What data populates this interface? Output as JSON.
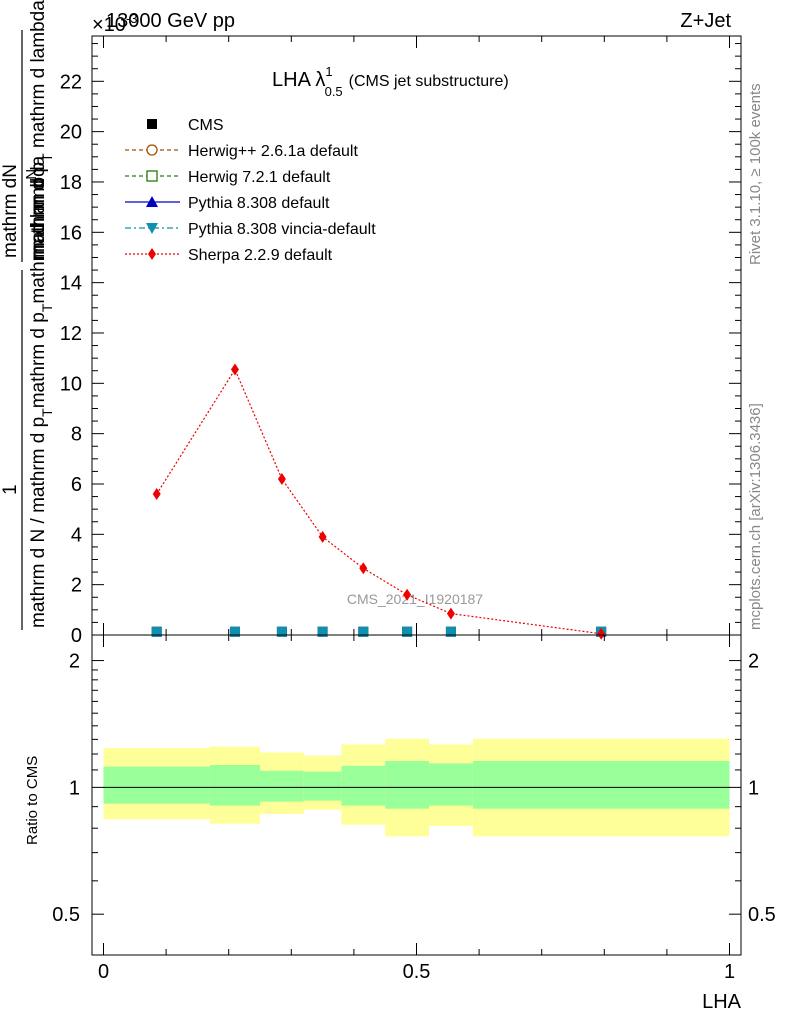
{
  "header": {
    "left": "13000 GeV pp",
    "right": "Z+Jet",
    "exponent": "×10",
    "exponent_power": "-3"
  },
  "side_labels": {
    "rivet": "Rivet 3.1.10, ≥ 100k events",
    "mcplots": "mcplots.cern.ch [arXiv:1306.3436]"
  },
  "plot_title": {
    "main": "LHA λ",
    "sup": "1",
    "sub": "0.5",
    "note": "(CMS jet substructure)"
  },
  "ylabel_parts": {
    "top_num": "mathrm d",
    "top_num2": "N",
    "top_den": "mathrm d p",
    "top_den2": "T",
    "top_den3": " mathrm d lambda",
    "one": "1",
    "frac2_a": "mathrm d N / mathrm d p",
    "frac2_b": "T",
    "frac2_c": "mathrm d p",
    "frac2_d": "T",
    "frac2_e": "mathrm d lambda"
  },
  "watermark": "CMS_2021_I1920187",
  "ratio": {
    "ylabel": "Ratio to CMS"
  },
  "xlabel": "LHA",
  "legend": [
    {
      "name": "CMS",
      "color": "#000000",
      "marker": "square",
      "line": "none"
    },
    {
      "name": "Herwig++ 2.6.1a default",
      "color": "#a05000",
      "marker": "circle-open",
      "line": "dashed"
    },
    {
      "name": "Herwig 7.2.1 default",
      "color": "#208000",
      "marker": "square-open",
      "line": "dashed"
    },
    {
      "name": "Pythia 8.308 default",
      "color": "#0000c0",
      "marker": "triangle",
      "line": "solid"
    },
    {
      "name": "Pythia 8.308 vincia-default",
      "color": "#1090b0",
      "marker": "triangle-down",
      "line": "dashdot"
    },
    {
      "name": "Sherpa 2.2.9 default",
      "color": "#ee0000",
      "marker": "diamond",
      "line": "dotted"
    }
  ],
  "chart_data": [
    {
      "type": "line",
      "panel": "main",
      "title": "LHA λ^1_0.5 (CMS jet substructure)",
      "xlabel": "LHA",
      "ylabel": "1/(dN/dpT) d²N/(dpT dλ)",
      "xlim": [
        0,
        1
      ],
      "ylim": [
        0,
        23.8
      ],
      "y_scale_note": "×10^-3",
      "yticks": [
        2,
        4,
        6,
        8,
        10,
        12,
        14,
        16,
        18,
        20,
        22
      ],
      "ytick_labels": [
        "2",
        "4",
        "6",
        "8",
        "10",
        "12",
        "14",
        "16",
        "18",
        "20",
        "22"
      ],
      "series": [
        {
          "name": "Sherpa 2.2.9 default",
          "x": [
            0.085,
            0.21,
            0.285,
            0.35,
            0.415,
            0.485,
            0.555,
            0.795
          ],
          "values": [
            5.6,
            10.55,
            6.2,
            3.9,
            2.65,
            1.6,
            0.85,
            0.05
          ]
        },
        {
          "name": "CMS",
          "x": [
            0.085,
            0.21,
            0.285,
            0.35,
            0.415,
            0.485,
            0.555,
            0.795
          ],
          "values": [
            0.05,
            0.05,
            0.05,
            0.05,
            0.05,
            0.05,
            0.05,
            0.05
          ]
        },
        {
          "name": "Pythia 8.308 vincia-default",
          "x": [
            0.085,
            0.21,
            0.285,
            0.35,
            0.415,
            0.485,
            0.555,
            0.795
          ],
          "values": [
            0.05,
            0.05,
            0.05,
            0.05,
            0.05,
            0.05,
            0.05,
            0.05
          ]
        }
      ]
    },
    {
      "type": "area",
      "panel": "ratio",
      "ylabel": "Ratio to CMS",
      "xlabel": "LHA",
      "xlim": [
        0,
        1
      ],
      "ylim": [
        0.4,
        2.3
      ],
      "yticks": [
        0.5,
        1,
        2
      ],
      "ytick_labels": [
        "0.5",
        "1",
        "2"
      ],
      "xticks": [
        0,
        0.5,
        1
      ],
      "xtick_labels": [
        "0",
        "0.5",
        "1"
      ],
      "reference_line": 1,
      "bins": [
        {
          "x0": 0.0,
          "x1": 0.17,
          "inner": [
            0.915,
            1.12
          ],
          "outer": [
            0.84,
            1.24
          ]
        },
        {
          "x0": 0.17,
          "x1": 0.25,
          "inner": [
            0.905,
            1.13
          ],
          "outer": [
            0.82,
            1.25
          ]
        },
        {
          "x0": 0.25,
          "x1": 0.32,
          "inner": [
            0.925,
            1.095
          ],
          "outer": [
            0.865,
            1.21
          ]
        },
        {
          "x0": 0.32,
          "x1": 0.38,
          "inner": [
            0.93,
            1.09
          ],
          "outer": [
            0.885,
            1.19
          ]
        },
        {
          "x0": 0.38,
          "x1": 0.45,
          "inner": [
            0.905,
            1.125
          ],
          "outer": [
            0.815,
            1.265
          ]
        },
        {
          "x0": 0.45,
          "x1": 0.52,
          "inner": [
            0.89,
            1.155
          ],
          "outer": [
            0.765,
            1.305
          ]
        },
        {
          "x0": 0.52,
          "x1": 0.59,
          "inner": [
            0.905,
            1.14
          ],
          "outer": [
            0.81,
            1.265
          ]
        },
        {
          "x0": 0.59,
          "x1": 1.0,
          "inner": [
            0.89,
            1.155
          ],
          "outer": [
            0.765,
            1.305
          ]
        }
      ]
    }
  ]
}
